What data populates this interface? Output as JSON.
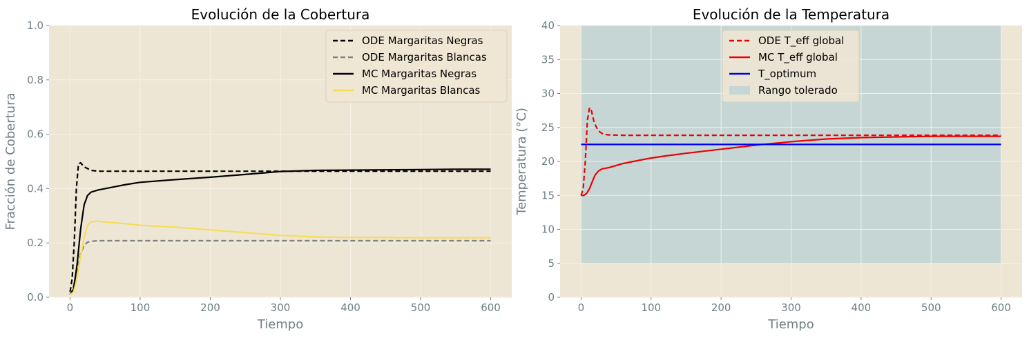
{
  "figure": {
    "background": "#ffffff",
    "plot_background": "#eee6d4",
    "grid_color": "#f5f1e6",
    "text_color": "#6e7f86"
  },
  "chart_data": [
    {
      "type": "line",
      "title": "Evolución de la Cobertura",
      "xlabel": "Tiempo",
      "ylabel": "Fracción de Cobertura",
      "xlim": [
        -30,
        630
      ],
      "ylim": [
        0,
        1
      ],
      "xticks": [
        0,
        100,
        200,
        300,
        400,
        500,
        600
      ],
      "yticks": [
        0.0,
        0.2,
        0.4,
        0.6,
        0.8,
        1.0
      ],
      "ytick_labels": [
        "0.0",
        "0.2",
        "0.4",
        "0.6",
        "0.8",
        "1.0"
      ],
      "grid": true,
      "legend": "top-right",
      "series": [
        {
          "name": "ODE Margaritas Negras",
          "color": "#000000",
          "style": "dashed",
          "x": [
            0,
            3,
            6,
            9,
            12,
            15,
            20,
            30,
            40,
            60,
            100,
            200,
            300,
            400,
            500,
            600
          ],
          "y": [
            0.02,
            0.07,
            0.2,
            0.4,
            0.49,
            0.495,
            0.48,
            0.467,
            0.464,
            0.464,
            0.464,
            0.464,
            0.464,
            0.464,
            0.464,
            0.464
          ]
        },
        {
          "name": "ODE Margaritas Blancas",
          "color": "#808080",
          "style": "dashed",
          "x": [
            0,
            5,
            10,
            15,
            20,
            25,
            30,
            40,
            60,
            100,
            200,
            300,
            400,
            500,
            600
          ],
          "y": [
            0.01,
            0.04,
            0.1,
            0.16,
            0.19,
            0.203,
            0.206,
            0.208,
            0.208,
            0.208,
            0.208,
            0.208,
            0.208,
            0.208,
            0.208
          ]
        },
        {
          "name": "MC Margaritas Negras",
          "color": "#000000",
          "style": "solid",
          "x": [
            0,
            5,
            10,
            15,
            20,
            25,
            30,
            40,
            60,
            80,
            100,
            150,
            200,
            250,
            300,
            350,
            400,
            450,
            500,
            550,
            600
          ],
          "y": [
            0.01,
            0.03,
            0.12,
            0.25,
            0.34,
            0.375,
            0.387,
            0.395,
            0.405,
            0.415,
            0.423,
            0.433,
            0.442,
            0.452,
            0.463,
            0.467,
            0.468,
            0.469,
            0.47,
            0.471,
            0.471
          ]
        },
        {
          "name": "MC Margaritas Blancas",
          "color": "#f5dc5a",
          "style": "solid",
          "x": [
            0,
            5,
            10,
            15,
            20,
            25,
            30,
            40,
            50,
            75,
            100,
            150,
            200,
            250,
            300,
            350,
            400,
            450,
            500,
            550,
            600
          ],
          "y": [
            0.01,
            0.02,
            0.07,
            0.15,
            0.22,
            0.265,
            0.278,
            0.28,
            0.277,
            0.272,
            0.265,
            0.258,
            0.248,
            0.238,
            0.228,
            0.222,
            0.22,
            0.22,
            0.219,
            0.219,
            0.219
          ]
        }
      ]
    },
    {
      "type": "line",
      "title": "Evolución de la Temperatura",
      "xlabel": "Tiempo",
      "ylabel": "Temperatura (°C)",
      "xlim": [
        -30,
        630
      ],
      "ylim": [
        0,
        40
      ],
      "xticks": [
        0,
        100,
        200,
        300,
        400,
        500,
        600
      ],
      "yticks": [
        0,
        5,
        10,
        15,
        20,
        25,
        30,
        35,
        40
      ],
      "ytick_labels": [
        "0",
        "5",
        "10",
        "15",
        "20",
        "25",
        "30",
        "35",
        "40"
      ],
      "grid": true,
      "legend": "top-center",
      "band": {
        "name": "Rango tolerado",
        "color": "#c5d6d4",
        "x": [
          0,
          600
        ],
        "y": [
          5,
          40
        ]
      },
      "series": [
        {
          "name": "ODE T_eff global",
          "color": "#ee0000",
          "style": "dashed",
          "x": [
            0,
            3,
            6,
            9,
            12,
            15,
            18,
            22,
            27,
            32,
            40,
            60,
            100,
            200,
            300,
            400,
            500,
            600
          ],
          "y": [
            15,
            16,
            20,
            26,
            27.9,
            27.4,
            26,
            25,
            24.3,
            24,
            23.9,
            23.85,
            23.85,
            23.85,
            23.85,
            23.85,
            23.85,
            23.85
          ]
        },
        {
          "name": "MC T_eff global",
          "color": "#ee0000",
          "style": "solid",
          "x": [
            0,
            4,
            8,
            12,
            16,
            20,
            25,
            30,
            40,
            50,
            60,
            80,
            100,
            120,
            150,
            200,
            250,
            300,
            350,
            400,
            450,
            500,
            550,
            600
          ],
          "y": [
            15,
            15,
            15.3,
            16,
            17,
            18,
            18.6,
            18.9,
            19.1,
            19.4,
            19.7,
            20.1,
            20.5,
            20.8,
            21.2,
            21.8,
            22.4,
            22.9,
            23.3,
            23.5,
            23.6,
            23.7,
            23.7,
            23.7
          ]
        },
        {
          "name": "T_optimum",
          "color": "#0000ee",
          "style": "solid",
          "x": [
            0,
            600
          ],
          "y": [
            22.5,
            22.5
          ]
        }
      ]
    }
  ]
}
